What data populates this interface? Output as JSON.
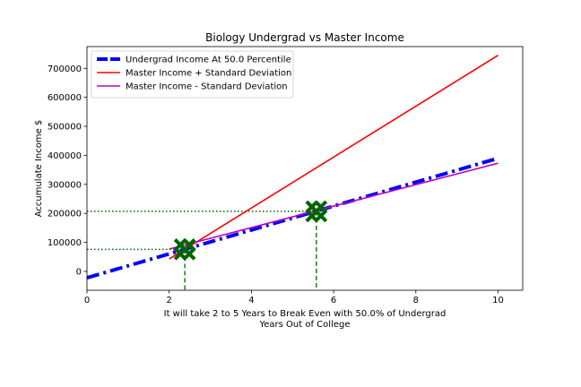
{
  "chart_data": {
    "type": "line",
    "title": "Biology Undergrad vs Master Income",
    "xlabel_lines": [
      "It will take 2 to 5 Years to Break Even with 50.0% of Undergrad",
      "Years Out of College"
    ],
    "ylabel": "Accumulate Income $",
    "xlim": [
      0,
      10.6
    ],
    "ylim": [
      -65000,
      775000
    ],
    "xticks": [
      0,
      2,
      4,
      6,
      8,
      10
    ],
    "xtick_labels": [
      "0",
      "2",
      "4",
      "6",
      "8",
      "10"
    ],
    "yticks": [
      0,
      100000,
      200000,
      300000,
      400000,
      500000,
      600000,
      700000
    ],
    "ytick_labels": [
      "0",
      "100000",
      "200000",
      "300000",
      "400000",
      "500000",
      "600000",
      "700000"
    ],
    "grid": false,
    "legend_position": "top-left",
    "series": [
      {
        "name": "Undergrad Income At 50.0 Percentile",
        "x": [
          0,
          10
        ],
        "y": [
          -22000,
          390000
        ],
        "color": "#0000ff",
        "style": "dashdot"
      },
      {
        "name": "Master Income + Standard Deviation",
        "x": [
          2,
          10
        ],
        "y": [
          43000,
          745000
        ],
        "color": "#ff0000",
        "style": "solid"
      },
      {
        "name": "Master Income - Standard Deviation",
        "x": [
          2,
          10
        ],
        "y": [
          77000,
          373000
        ],
        "color": "#bf00bf",
        "style": "solid"
      }
    ],
    "markers": [
      {
        "x": 2.38,
        "y": 76000,
        "color": "#006400"
      },
      {
        "x": 5.58,
        "y": 207000,
        "color": "#006400"
      }
    ],
    "guide_lines": [
      {
        "x": 2.38,
        "y": 76000,
        "color": "#006400"
      },
      {
        "x": 5.58,
        "y": 207000,
        "color": "#006400"
      }
    ]
  }
}
